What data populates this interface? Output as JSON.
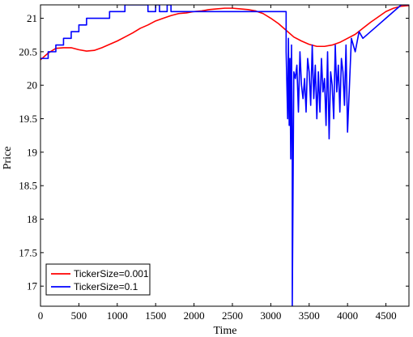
{
  "chart_data": {
    "type": "line",
    "xlabel": "Time",
    "ylabel": "Price",
    "xlim": [
      0,
      4800
    ],
    "ylim": [
      16.7,
      21.2
    ],
    "xticks": [
      0,
      500,
      1000,
      1500,
      2000,
      2500,
      3000,
      3500,
      4000,
      4500
    ],
    "xtick_labels": [
      "0",
      "500",
      "1000",
      "1500",
      "2000",
      "2500",
      "3000",
      "3500",
      "4000",
      "4500"
    ],
    "yticks": [
      17,
      17.5,
      18,
      18.5,
      19,
      19.5,
      20,
      20.5,
      21
    ],
    "ytick_labels": [
      "17",
      "17.5",
      "18",
      "18.5",
      "19",
      "19.5",
      "20",
      "20.5",
      "21"
    ],
    "grid": false,
    "legend_position": "bottom-left",
    "series": [
      {
        "name": "TickerSize=0.001",
        "color": "#ff0000",
        "x": [
          0,
          100,
          200,
          300,
          400,
          500,
          600,
          700,
          800,
          900,
          1000,
          1100,
          1200,
          1300,
          1400,
          1500,
          1600,
          1700,
          1800,
          1900,
          2000,
          2100,
          2200,
          2300,
          2400,
          2500,
          2600,
          2700,
          2800,
          2900,
          3000,
          3100,
          3200,
          3300,
          3400,
          3500,
          3600,
          3700,
          3800,
          3900,
          4000,
          4100,
          4200,
          4300,
          4400,
          4500,
          4600,
          4700,
          4800
        ],
        "y": [
          20.38,
          20.48,
          20.55,
          20.56,
          20.56,
          20.53,
          20.51,
          20.52,
          20.56,
          20.61,
          20.66,
          20.72,
          20.78,
          20.85,
          20.9,
          20.96,
          21.0,
          21.04,
          21.07,
          21.08,
          21.1,
          21.11,
          21.13,
          21.14,
          21.15,
          21.15,
          21.14,
          21.13,
          21.11,
          21.07,
          21.0,
          20.92,
          20.82,
          20.72,
          20.66,
          20.61,
          20.58,
          20.58,
          20.6,
          20.64,
          20.7,
          20.76,
          20.85,
          20.94,
          21.02,
          21.1,
          21.15,
          21.18,
          21.19
        ]
      },
      {
        "name": "TickerSize=0.1",
        "color": "#0000ff",
        "x": [
          0,
          100,
          100,
          200,
          200,
          300,
          300,
          400,
          400,
          500,
          500,
          600,
          600,
          700,
          700,
          900,
          900,
          1000,
          1000,
          1100,
          1100,
          1200,
          1200,
          1300,
          1300,
          1400,
          1400,
          1500,
          1500,
          1550,
          1550,
          1650,
          1650,
          1700,
          1700,
          1750,
          1750,
          3200,
          3200,
          3220,
          3230,
          3240,
          3250,
          3260,
          3270,
          3280,
          3280,
          3300,
          3320,
          3340,
          3360,
          3380,
          3400,
          3420,
          3440,
          3460,
          3480,
          3500,
          3520,
          3540,
          3560,
          3580,
          3600,
          3620,
          3640,
          3660,
          3680,
          3700,
          3720,
          3740,
          3760,
          3780,
          3800,
          3820,
          3840,
          3860,
          3880,
          3900,
          3920,
          3940,
          3960,
          3980,
          4000,
          4050,
          4100,
          4150,
          4200,
          4300,
          4400,
          4500,
          4600,
          4700,
          4800
        ],
        "y": [
          20.4,
          20.4,
          20.5,
          20.5,
          20.6,
          20.6,
          20.7,
          20.7,
          20.8,
          20.8,
          20.9,
          20.9,
          21.0,
          21.0,
          21.0,
          21.0,
          21.1,
          21.1,
          21.1,
          21.1,
          21.2,
          21.2,
          21.2,
          21.2,
          21.2,
          21.2,
          21.1,
          21.1,
          21.2,
          21.2,
          21.1,
          21.1,
          21.2,
          21.2,
          21.1,
          21.1,
          21.1,
          21.1,
          20.5,
          19.5,
          20.7,
          19.4,
          20.4,
          18.9,
          20.6,
          19.0,
          16.7,
          20.2,
          20.1,
          20.3,
          19.6,
          20.5,
          20.0,
          19.8,
          20.1,
          19.6,
          20.4,
          20.2,
          19.7,
          20.6,
          19.8,
          20.3,
          19.5,
          20.2,
          19.6,
          20.4,
          19.9,
          20.1,
          19.4,
          20.5,
          19.2,
          20.2,
          20.0,
          19.5,
          20.6,
          19.9,
          20.3,
          19.6,
          20.4,
          20.2,
          19.7,
          20.6,
          19.3,
          20.7,
          20.5,
          20.8,
          20.7,
          20.8,
          20.9,
          21.0,
          21.1,
          21.2,
          21.2
        ]
      }
    ]
  }
}
